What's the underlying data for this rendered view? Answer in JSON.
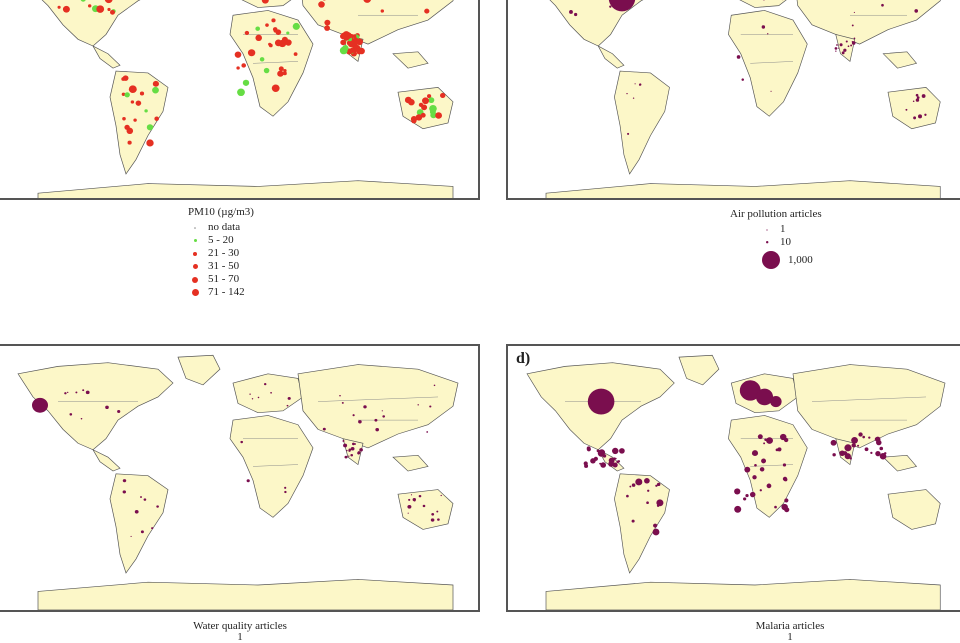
{
  "panels": {
    "pm10": {
      "legend_title": "PM10 (µg/m3)",
      "legend_items": [
        {
          "label": "no data",
          "color": "#888888"
        },
        {
          "label": "5 - 20",
          "color": "#66dd44"
        },
        {
          "label": "21 - 30",
          "color": "#e53022"
        },
        {
          "label": "31 - 50",
          "color": "#e53022"
        },
        {
          "label": "51 - 70",
          "color": "#e53022"
        },
        {
          "label": "71 - 142",
          "color": "#e53022"
        }
      ]
    },
    "air": {
      "legend_title": "Air pollution articles",
      "legend_items": [
        {
          "label": "1"
        },
        {
          "label": "10"
        },
        {
          "label": "1,000"
        }
      ],
      "marker_color": "#7a0e4e"
    },
    "water": {
      "caption": "Water quality articles",
      "caption_sub": "1"
    },
    "malaria": {
      "label": "d)",
      "caption": "Malaria articles",
      "caption_sub": "1"
    }
  },
  "colors": {
    "land": "#fcf7c8",
    "marker": "#7a0e4e",
    "pm_high": "#e53022",
    "pm_low": "#66dd44"
  }
}
